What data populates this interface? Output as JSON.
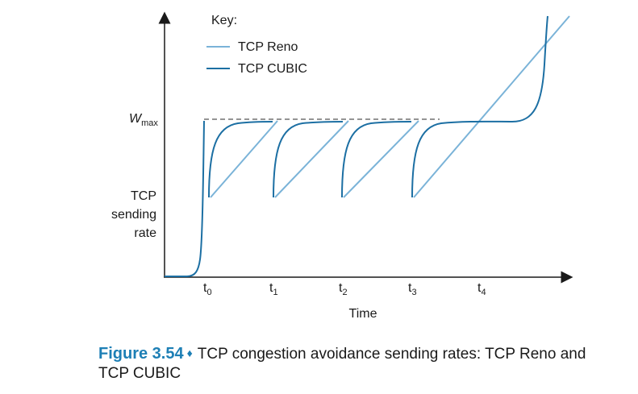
{
  "key": {
    "title": "Key:",
    "reno_label": "TCP Reno",
    "cubic_label": "TCP CUBIC"
  },
  "y_axis": {
    "wmax_main": "W",
    "wmax_sub": "max",
    "label_lines": [
      "TCP",
      "sending",
      "rate"
    ]
  },
  "x_axis": {
    "ticks": [
      {
        "main": "t",
        "sub": "0"
      },
      {
        "main": "t",
        "sub": "1"
      },
      {
        "main": "t",
        "sub": "2"
      },
      {
        "main": "t",
        "sub": "3"
      },
      {
        "main": "t",
        "sub": "4"
      }
    ],
    "label": "Time"
  },
  "caption": {
    "label": "Figure 3.54",
    "separator": "♦",
    "text_line1": "TCP congestion avoidance sending rates: TCP Reno and",
    "text_line2": "TCP CUBIC"
  },
  "colors": {
    "reno": "#7ab3d8",
    "cubic": "#1c6fa3",
    "axis": "#1a1a1a",
    "dashed": "#555555",
    "accent": "#1d7fb5"
  }
}
